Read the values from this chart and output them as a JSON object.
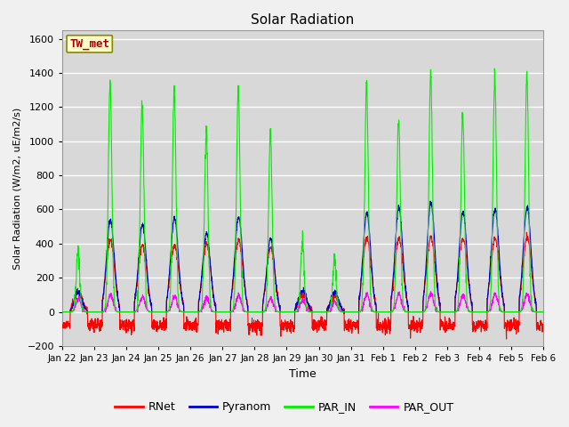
{
  "title": "Solar Radiation",
  "ylabel": "Solar Radiation (W/m2, uE/m2/s)",
  "xlabel": "Time",
  "ylim": [
    -200,
    1650
  ],
  "yticks": [
    -200,
    0,
    200,
    400,
    600,
    800,
    1000,
    1200,
    1400,
    1600
  ],
  "x_tick_labels": [
    "Jan 22",
    "Jan 23",
    "Jan 24",
    "Jan 25",
    "Jan 26",
    "Jan 27",
    "Jan 28",
    "Jan 29",
    "Jan 30",
    "Jan 31",
    "Feb 1",
    "Feb 2",
    "Feb 3",
    "Feb 4",
    "Feb 5",
    "Feb 6"
  ],
  "series_colors": {
    "RNet": "#ff0000",
    "Pyranom": "#0000cc",
    "PAR_IN": "#00ee00",
    "PAR_OUT": "#ff00ff"
  },
  "legend_label": "TW_met",
  "legend_box_color": "#ffffcc",
  "legend_box_edge": "#888800",
  "plot_bg_color": "#d8d8d8",
  "fig_bg_color": "#f0f0f0",
  "grid_color": "#ffffff",
  "line_width": 0.8
}
